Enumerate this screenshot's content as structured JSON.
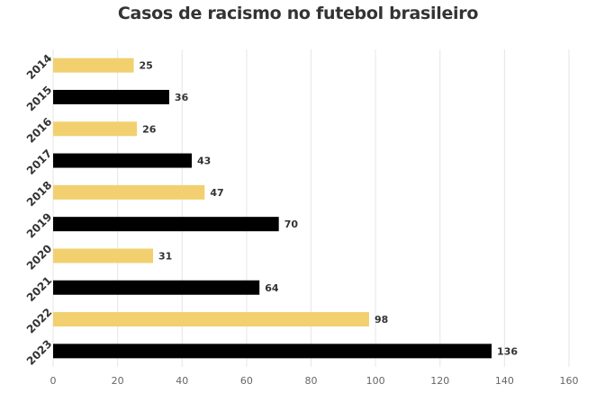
{
  "chart_data": {
    "type": "bar",
    "orientation": "horizontal",
    "title": "Casos de racismo no futebol brasileiro",
    "xlabel": "",
    "ylabel": "",
    "categories": [
      "2014",
      "2015",
      "2016",
      "2017",
      "2018",
      "2019",
      "2020",
      "2021",
      "2022",
      "2023"
    ],
    "values": [
      25,
      36,
      26,
      43,
      47,
      70,
      31,
      64,
      98,
      136
    ],
    "xlim": [
      0,
      160
    ],
    "xticks": [
      0,
      20,
      40,
      60,
      80,
      100,
      120,
      140,
      160
    ],
    "grid": true,
    "legend": "none",
    "bar_colors": [
      "#f2d06f",
      "#000000",
      "#f2d06f",
      "#000000",
      "#f2d06f",
      "#000000",
      "#f2d06f",
      "#000000",
      "#f2d06f",
      "#000000"
    ]
  }
}
